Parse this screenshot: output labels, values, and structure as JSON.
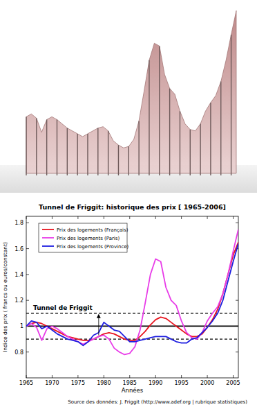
{
  "chart_data": {
    "type": "line",
    "title": "Tunnel de Friggit: historique des prix [ 1965-2006]",
    "x_label": "Années",
    "y_label": "Indice des prix ( francs ou euros/constant)",
    "source": "Source des données: J. Friggit (http://www.adef.org | rubrique statistiques)",
    "x": [
      1965,
      1966,
      1967,
      1968,
      1969,
      1970,
      1971,
      1972,
      1973,
      1974,
      1975,
      1976,
      1977,
      1978,
      1979,
      1980,
      1981,
      1982,
      1983,
      1984,
      1985,
      1986,
      1987,
      1988,
      1989,
      1990,
      1991,
      1992,
      1993,
      1994,
      1995,
      1996,
      1997,
      1998,
      1999,
      2000,
      2001,
      2002,
      2003,
      2004,
      2005,
      2006
    ],
    "series": [
      {
        "name": "Prix des logements (Français)",
        "color": "#e8141e",
        "values": [
          1.0,
          1.02,
          1.03,
          1.02,
          1.0,
          0.98,
          0.96,
          0.94,
          0.92,
          0.91,
          0.9,
          0.89,
          0.89,
          0.9,
          0.92,
          0.94,
          0.95,
          0.94,
          0.92,
          0.9,
          0.89,
          0.89,
          0.92,
          0.96,
          1.01,
          1.05,
          1.07,
          1.06,
          1.03,
          1.0,
          0.97,
          0.94,
          0.92,
          0.92,
          0.94,
          0.99,
          1.05,
          1.13,
          1.25,
          1.4,
          1.55,
          1.65
        ]
      },
      {
        "name": "Prix des logements (Paris)",
        "color": "#e83ce8",
        "values": [
          1.0,
          1.02,
          0.99,
          0.89,
          0.98,
          1.0,
          0.98,
          0.95,
          0.92,
          0.9,
          0.88,
          0.86,
          0.88,
          0.9,
          0.92,
          0.93,
          0.9,
          0.83,
          0.8,
          0.78,
          0.79,
          0.84,
          0.97,
          1.18,
          1.4,
          1.52,
          1.5,
          1.3,
          1.2,
          1.16,
          1.04,
          0.95,
          0.91,
          0.9,
          0.95,
          1.04,
          1.1,
          1.15,
          1.25,
          1.4,
          1.58,
          1.75
        ]
      },
      {
        "name": "Prix des logements (Province)",
        "color": "#1e1ee0",
        "values": [
          1.0,
          1.04,
          1.03,
          0.98,
          1.0,
          0.97,
          0.94,
          0.92,
          0.9,
          0.89,
          0.88,
          0.85,
          0.88,
          0.93,
          0.95,
          1.03,
          1.0,
          0.97,
          0.96,
          0.92,
          0.88,
          0.88,
          0.89,
          0.9,
          0.91,
          0.92,
          0.92,
          0.92,
          0.9,
          0.88,
          0.87,
          0.87,
          0.9,
          0.91,
          0.95,
          0.99,
          1.04,
          1.1,
          1.2,
          1.35,
          1.5,
          1.64
        ]
      }
    ],
    "tunnel": {
      "label": "Tunnel de Friggit",
      "lower": 0.9,
      "center": 1,
      "upper": 1.1,
      "annotation_x": 1979
    },
    "xlim": [
      1965,
      2006
    ],
    "ylim": [
      0.6,
      1.85
    ],
    "xticks": [
      1965,
      1970,
      1975,
      1980,
      1985,
      1990,
      1995,
      2000,
      2005
    ],
    "yticks": [
      0.8,
      1,
      1.2,
      1.4,
      1.6,
      1.8
    ],
    "grid": false,
    "legend": "upper-left"
  }
}
